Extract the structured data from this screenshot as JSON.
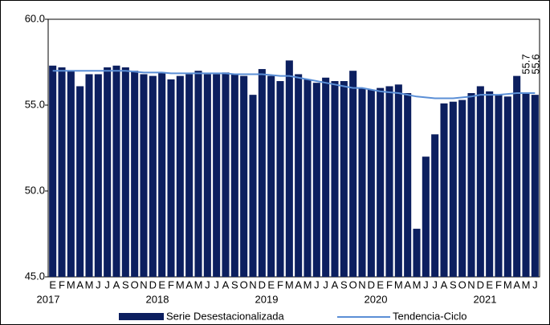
{
  "chart_data": {
    "type": "bar-line",
    "categories": [
      "E",
      "F",
      "M",
      "A",
      "M",
      "J",
      "J",
      "A",
      "S",
      "O",
      "N",
      "D",
      "E",
      "F",
      "M",
      "A",
      "M",
      "J",
      "J",
      "A",
      "S",
      "O",
      "N",
      "D",
      "E",
      "F",
      "M",
      "A",
      "M",
      "J",
      "J",
      "A",
      "S",
      "O",
      "N",
      "D",
      "E",
      "F",
      "M",
      "A",
      "M",
      "J",
      "J",
      "A",
      "S",
      "O",
      "N",
      "D",
      "E",
      "F",
      "M",
      "A",
      "M",
      "J"
    ],
    "years": [
      "2017",
      "2018",
      "2019",
      "2020",
      "2021"
    ],
    "series": [
      {
        "name": "Serie Desestacionalizada",
        "kind": "bar",
        "color": "#0c1f5f",
        "values": [
          57.3,
          57.2,
          57.0,
          56.1,
          56.8,
          56.8,
          57.2,
          57.3,
          57.2,
          57.0,
          56.8,
          56.7,
          56.9,
          56.5,
          56.7,
          56.8,
          57.0,
          56.8,
          56.8,
          56.9,
          56.8,
          56.7,
          55.6,
          57.1,
          56.7,
          56.4,
          57.6,
          56.8,
          56.5,
          56.3,
          56.6,
          56.4,
          56.4,
          57.0,
          56.0,
          55.9,
          56.0,
          56.1,
          56.2,
          55.7,
          47.8,
          52.0,
          53.3,
          55.1,
          55.2,
          55.3,
          55.7,
          56.1,
          55.8,
          55.6,
          55.5,
          56.7,
          55.7,
          55.6
        ]
      },
      {
        "name": "Tendencia-Ciclo",
        "kind": "line",
        "color": "#5b8fd6",
        "values": [
          57.0,
          57.0,
          57.0,
          57.0,
          57.0,
          57.0,
          57.0,
          57.0,
          57.0,
          56.95,
          56.9,
          56.9,
          56.9,
          56.85,
          56.85,
          56.85,
          56.85,
          56.85,
          56.85,
          56.85,
          56.8,
          56.8,
          56.8,
          56.8,
          56.75,
          56.7,
          56.7,
          56.6,
          56.5,
          56.4,
          56.3,
          56.2,
          56.1,
          56.0,
          56.0,
          55.9,
          55.8,
          55.75,
          55.7,
          55.6,
          55.5,
          55.45,
          55.4,
          55.4,
          55.4,
          55.45,
          55.5,
          55.6,
          55.6,
          55.6,
          55.65,
          55.7,
          55.7,
          55.7
        ]
      }
    ],
    "ylim": [
      45,
      60
    ],
    "yticks": [
      {
        "value": 45,
        "label": "45.0"
      },
      {
        "value": 50,
        "label": "50.0"
      },
      {
        "value": 55,
        "label": "55.0"
      },
      {
        "value": 60,
        "label": "60.0"
      }
    ],
    "grid": false
  }
}
